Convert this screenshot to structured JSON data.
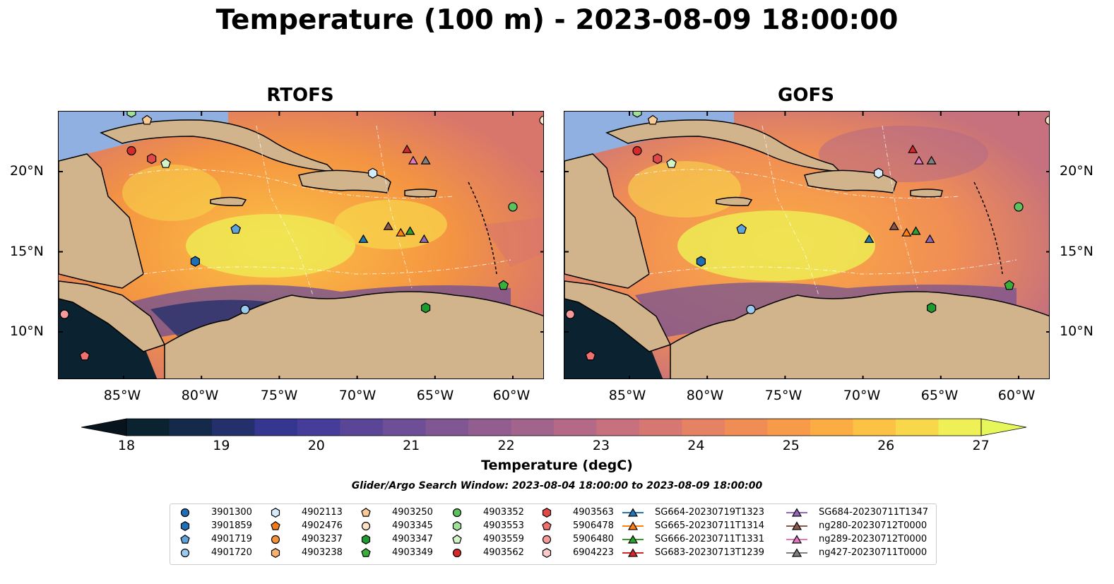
{
  "title": "Temperature (100 m) - 2023-08-09 18:00:00",
  "panels": [
    {
      "title": "RTOFS"
    },
    {
      "title": "GOFS"
    }
  ],
  "lat_ticks": [
    "20°N",
    "15°N",
    "10°N"
  ],
  "lon_ticks": [
    "85°W",
    "80°W",
    "75°W",
    "70°W",
    "65°W",
    "60°W"
  ],
  "colorbar": {
    "label": "Temperature (degC)",
    "ticks": [
      "18",
      "19",
      "20",
      "21",
      "22",
      "23",
      "24",
      "25",
      "26",
      "27"
    ],
    "colors": [
      "#0b2230",
      "#152a4a",
      "#24306c",
      "#34368f",
      "#463d9a",
      "#5a4597",
      "#6e4e96",
      "#805693",
      "#925e90",
      "#a2648c",
      "#b46a86",
      "#c6717d",
      "#d67871",
      "#e58264",
      "#f08d55",
      "#f79b48",
      "#fbad43",
      "#fcc244",
      "#f8d74b",
      "#eef055"
    ],
    "under_color": "#07141d",
    "over_color": "#e6f75c"
  },
  "search_window": "Glider/Argo Search Window: 2023-08-04 18:00:00 to 2023-08-09 18:00:00",
  "colors": {
    "land": "#d2b48c",
    "shelf": "#8fb0e0"
  },
  "legend": [
    {
      "label": "3901300",
      "marker": "circle",
      "color": "#1f6fb4"
    },
    {
      "label": "3901859",
      "marker": "hexagon",
      "color": "#1f6fb4"
    },
    {
      "label": "4901719",
      "marker": "pentagon",
      "color": "#5fa3dc"
    },
    {
      "label": "4901720",
      "marker": "circle",
      "color": "#9ccaee"
    },
    {
      "label": "4902113",
      "marker": "hexagon",
      "color": "#d5ebfb"
    },
    {
      "label": "4902476",
      "marker": "pentagon",
      "color": "#f07b19"
    },
    {
      "label": "4903237",
      "marker": "circle",
      "color": "#f49234"
    },
    {
      "label": "4903238",
      "marker": "hexagon",
      "color": "#f8b26e"
    },
    {
      "label": "4903250",
      "marker": "pentagon",
      "color": "#fbcb96"
    },
    {
      "label": "4903345",
      "marker": "circle",
      "color": "#fde3c6"
    },
    {
      "label": "4903347",
      "marker": "hexagon",
      "color": "#1f9a2f"
    },
    {
      "label": "4903349",
      "marker": "pentagon",
      "color": "#3aae3a"
    },
    {
      "label": "4903352",
      "marker": "circle",
      "color": "#5cc25c"
    },
    {
      "label": "4903553",
      "marker": "hexagon",
      "color": "#9ee29a"
    },
    {
      "label": "4903559",
      "marker": "pentagon",
      "color": "#d1f5c8"
    },
    {
      "label": "4903562",
      "marker": "circle",
      "color": "#d42a2a"
    },
    {
      "label": "4903563",
      "marker": "hexagon",
      "color": "#e34848"
    },
    {
      "label": "5906478",
      "marker": "pentagon",
      "color": "#f07070"
    },
    {
      "label": "5906480",
      "marker": "circle",
      "color": "#f49a9a"
    },
    {
      "label": "6904223",
      "marker": "hexagon",
      "color": "#fbcaca"
    },
    {
      "label": "SG664-20230719T1323",
      "marker": "triangle",
      "color": "#1f77b4",
      "line": true
    },
    {
      "label": "SG665-20230711T1314",
      "marker": "triangle",
      "color": "#ff7f0e",
      "line": true
    },
    {
      "label": "SG666-20230711T1331",
      "marker": "triangle",
      "color": "#2ca02c",
      "line": true
    },
    {
      "label": "SG683-20230713T1239",
      "marker": "triangle",
      "color": "#d62728",
      "line": true
    },
    {
      "label": "SG684-20230711T1347",
      "marker": "triangle",
      "color": "#9467bd",
      "line": true
    },
    {
      "label": "ng280-20230712T0000",
      "marker": "triangle",
      "color": "#8c564b",
      "line": true
    },
    {
      "label": "ng289-20230712T0000",
      "marker": "triangle",
      "color": "#e377c2",
      "line": true
    },
    {
      "label": "ng427-20230711T0000",
      "marker": "triangle",
      "color": "#7f7f7f",
      "line": true
    }
  ],
  "observations": [
    {
      "id": "4903562",
      "lon": -84.5,
      "lat": 21.3
    },
    {
      "id": "4903563",
      "lon": -83.2,
      "lat": 20.8
    },
    {
      "id": "4903559",
      "lon": -82.3,
      "lat": 20.5
    },
    {
      "id": "4903250",
      "lon": -83.5,
      "lat": 23.2
    },
    {
      "id": "4903553",
      "lon": -84.5,
      "lat": 23.7
    },
    {
      "id": "4903345",
      "lon": -58.0,
      "lat": 23.2
    },
    {
      "id": "4902113",
      "lon": -69.0,
      "lat": 19.9
    },
    {
      "id": "4901719",
      "lon": -77.8,
      "lat": 16.4
    },
    {
      "id": "3901859",
      "lon": -80.4,
      "lat": 14.4
    },
    {
      "id": "4901720",
      "lon": -77.2,
      "lat": 11.4
    },
    {
      "id": "4903352",
      "lon": -60.0,
      "lat": 17.8
    },
    {
      "id": "4903349",
      "lon": -60.6,
      "lat": 12.9
    },
    {
      "id": "4903347",
      "lon": -65.6,
      "lat": 11.5
    },
    {
      "id": "5906480",
      "lon": -88.8,
      "lat": 11.1
    },
    {
      "id": "5906478",
      "lon": -87.5,
      "lat": 8.5
    },
    {
      "id": "SG683-20230713T1239",
      "lon": -66.8,
      "lat": 21.4
    },
    {
      "id": "ng289-20230712T0000",
      "lon": -66.4,
      "lat": 20.7
    },
    {
      "id": "ng427-20230711T0000",
      "lon": -65.6,
      "lat": 20.7
    },
    {
      "id": "SG664-20230719T1323",
      "lon": -69.6,
      "lat": 15.8
    },
    {
      "id": "ng280-20230712T0000",
      "lon": -68.0,
      "lat": 16.6
    },
    {
      "id": "SG665-20230711T1314",
      "lon": -67.2,
      "lat": 16.2
    },
    {
      "id": "SG666-20230711T1331",
      "lon": -66.6,
      "lat": 16.3
    },
    {
      "id": "SG684-20230711T1347",
      "lon": -65.7,
      "lat": 15.8
    }
  ]
}
